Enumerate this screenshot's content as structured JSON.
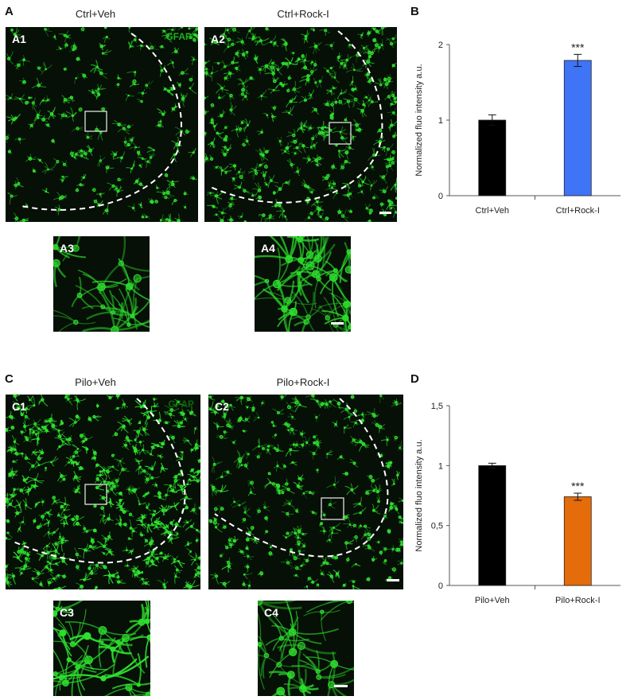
{
  "panel_A": {
    "letter": "A",
    "titles": [
      "Ctrl+Veh",
      "Ctrl+Rock-I"
    ],
    "sublabels": [
      "A1",
      "A2",
      "A3",
      "A4"
    ],
    "marker": "GFAP"
  },
  "panel_C": {
    "letter": "C",
    "titles": [
      "Pilo+Veh",
      "Pilo+Rock-I"
    ],
    "sublabels": [
      "C1",
      "C2",
      "C3",
      "C4"
    ],
    "marker": "GFAP"
  },
  "panel_B_letter": "B",
  "panel_D_letter": "D",
  "colors": {
    "fluo_green": "#2ee02e",
    "bar_black": "#000000",
    "bar_blue": "#3f74f7",
    "bar_orange": "#e46c0a"
  },
  "chart_data": [
    {
      "type": "bar",
      "panel": "B",
      "categories": [
        "Ctrl+Veh",
        "Ctrl+Rock-I"
      ],
      "values": [
        1.0,
        1.79
      ],
      "errors": [
        0.07,
        0.08
      ],
      "colors": [
        "#000000",
        "#3f74f7"
      ],
      "significance": [
        "",
        "***"
      ],
      "ylabel": "Normalized fluo intensity a.u.",
      "ylim": [
        0,
        2
      ],
      "yticks": [
        "0",
        "1",
        "2"
      ],
      "grid": false
    },
    {
      "type": "bar",
      "panel": "D",
      "categories": [
        "Pilo+Veh",
        "Pilo+Rock-I"
      ],
      "values": [
        1.0,
        0.74
      ],
      "errors": [
        0.02,
        0.03
      ],
      "colors": [
        "#000000",
        "#e46c0a"
      ],
      "significance": [
        "",
        "***"
      ],
      "ylabel": "Normalized fluo intensity a.u.",
      "ylim": [
        0,
        1.5
      ],
      "yticks": [
        "0",
        "0,5",
        "1",
        "1,5"
      ],
      "grid": false
    }
  ]
}
